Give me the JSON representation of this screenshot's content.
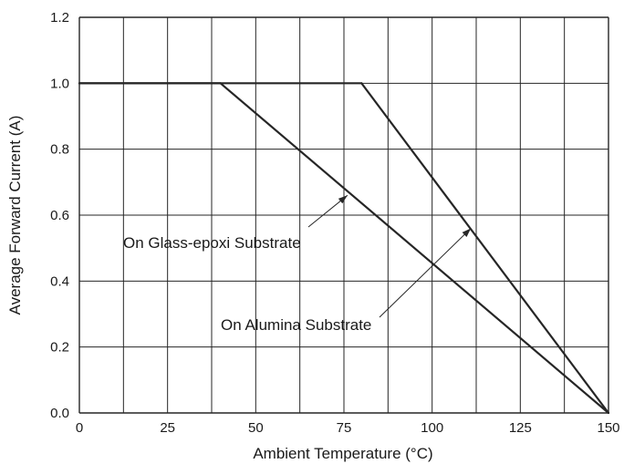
{
  "chart_data": {
    "type": "line",
    "title": "",
    "xlabel": "Ambient Temperature (°C)",
    "ylabel": "Average Forward Current (A)",
    "xlim": [
      0,
      150
    ],
    "ylim": [
      0,
      1.2
    ],
    "x_ticks": [
      0,
      25,
      50,
      75,
      100,
      125,
      150
    ],
    "y_ticks": [
      0.0,
      0.2,
      0.4,
      0.6,
      0.8,
      1.0,
      1.2
    ],
    "x_tick_labels": [
      "0",
      "25",
      "50",
      "75",
      "100",
      "125",
      "150"
    ],
    "y_tick_labels": [
      "0.0",
      "0.2",
      "0.4",
      "0.6",
      "0.8",
      "1.0",
      "1.2"
    ],
    "grid": true,
    "series": [
      {
        "name": "On Glass-epoxi Substrate",
        "x": [
          0,
          40,
          150
        ],
        "y": [
          1.0,
          1.0,
          0.0
        ]
      },
      {
        "name": "On Alumina Substrate",
        "x": [
          0,
          80,
          150
        ],
        "y": [
          1.0,
          1.0,
          0.0
        ]
      }
    ],
    "annotations": [
      {
        "text": "On Glass-epoxi Substrate",
        "target": [
          76,
          0.66
        ]
      },
      {
        "text": "On Alumina Substrate",
        "target": [
          111,
          0.56
        ]
      }
    ],
    "line_color": "#262626",
    "grid_color": "#262626"
  }
}
